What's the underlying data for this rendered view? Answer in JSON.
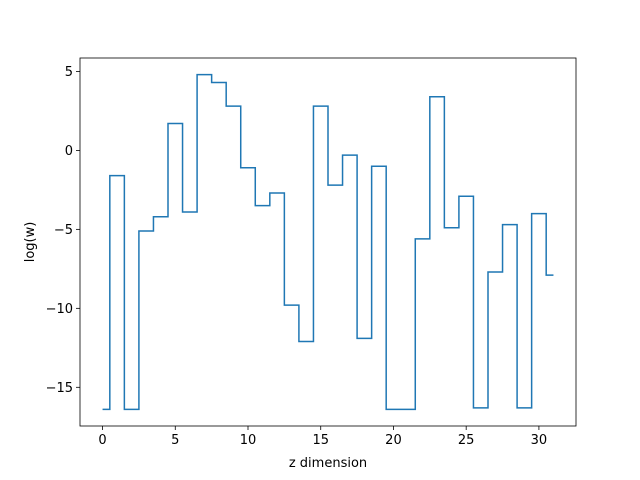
{
  "chart_data": {
    "type": "line",
    "drawstyle": "steps-mid",
    "title": "",
    "xlabel": "z dimension",
    "ylabel": "log(w)",
    "xlim": [
      -1.55,
      32.55
    ],
    "ylim": [
      -17.45,
      5.85
    ],
    "xticks": [
      0,
      5,
      10,
      15,
      20,
      25,
      30
    ],
    "yticks": [
      5,
      0,
      -5,
      -10,
      -15
    ],
    "xtick_labels": [
      "0",
      "5",
      "10",
      "15",
      "20",
      "25",
      "30"
    ],
    "ytick_labels": [
      "5",
      "0",
      "−5",
      "−10",
      "−15"
    ],
    "grid": false,
    "legend": "none",
    "line_color": "#1f77b4",
    "series": [
      {
        "x": [
          0,
          1,
          2,
          3,
          4,
          5,
          6,
          7,
          8,
          9,
          10,
          11,
          12,
          13,
          14,
          15,
          16,
          17,
          18,
          19,
          20,
          21,
          22,
          23,
          24,
          25,
          26,
          27,
          28,
          29,
          30,
          31
        ],
        "values": [
          -16.4,
          -1.6,
          -16.4,
          -5.1,
          -4.2,
          1.7,
          -3.9,
          4.8,
          4.3,
          2.8,
          -1.1,
          -3.5,
          -2.7,
          -9.8,
          -12.1,
          2.8,
          -2.2,
          -0.3,
          -11.9,
          -1.0,
          -16.4,
          -16.4,
          -5.6,
          3.4,
          -4.9,
          -2.9,
          -16.3,
          -7.7,
          -4.7,
          -16.3,
          -4.0,
          -7.9
        ]
      }
    ]
  }
}
